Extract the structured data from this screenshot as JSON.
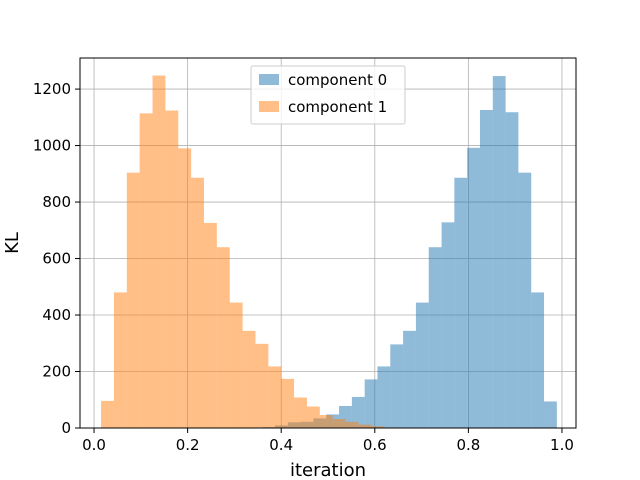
{
  "chart_data": {
    "type": "bar",
    "title": "",
    "xlabel": "iteration",
    "ylabel": "KL",
    "xlim": [
      -0.03,
      1.03
    ],
    "ylim": [
      0,
      1310
    ],
    "xticks": [
      0.0,
      0.2,
      0.4,
      0.6,
      0.8,
      1.0
    ],
    "xtick_labels": [
      "0.0",
      "0.2",
      "0.4",
      "0.6",
      "0.8",
      "1.0"
    ],
    "yticks": [
      0,
      200,
      400,
      600,
      800,
      1000,
      1200
    ],
    "ytick_labels": [
      "0",
      "200",
      "400",
      "600",
      "800",
      "1000",
      "1200"
    ],
    "grid": true,
    "legend_position": "top-center",
    "series": [
      {
        "name": "component 0",
        "color": "#1f77b4",
        "bin_edges": [
          0.3593,
          0.3867,
          0.4141,
          0.4415,
          0.4688,
          0.4962,
          0.5236,
          0.551,
          0.5784,
          0.6057,
          0.6331,
          0.6605,
          0.6879,
          0.7153,
          0.7427,
          0.77,
          0.7974,
          0.8248,
          0.8522,
          0.8796,
          0.9069,
          0.9343,
          0.9617,
          0.9891
        ],
        "counts": [
          3,
          9,
          20,
          22,
          34,
          48,
          78,
          110,
          172,
          218,
          296,
          344,
          444,
          640,
          728,
          886,
          992,
          1126,
          1246,
          1118,
          904,
          480,
          94
        ]
      },
      {
        "name": "component 1",
        "color": "#ff7f0e",
        "bin_edges": [
          0.015,
          0.0425,
          0.07,
          0.0975,
          0.125,
          0.1525,
          0.18,
          0.2075,
          0.235,
          0.2625,
          0.29,
          0.3175,
          0.345,
          0.3725,
          0.4,
          0.4275,
          0.455,
          0.4825,
          0.51,
          0.5375,
          0.565,
          0.5925,
          0.62,
          0.6475
        ],
        "counts": [
          96,
          480,
          904,
          1114,
          1248,
          1124,
          990,
          886,
          726,
          640,
          444,
          344,
          298,
          218,
          174,
          108,
          76,
          46,
          32,
          22,
          12,
          6,
          2
        ]
      }
    ],
    "alpha": 0.5
  }
}
